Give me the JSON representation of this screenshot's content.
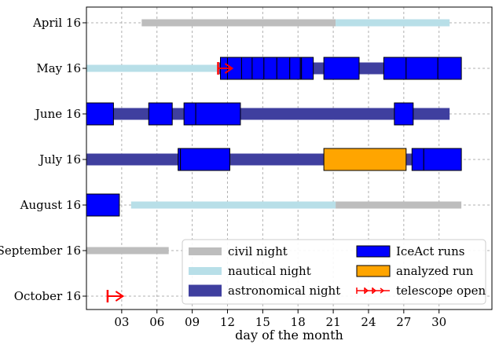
{
  "chart_data": {
    "type": "timeline",
    "xlabel": "day of the month",
    "xlim": [
      0,
      34.5
    ],
    "x_ticks": [
      3,
      6,
      9,
      12,
      15,
      18,
      21,
      24,
      27,
      30
    ],
    "x_tick_labels": [
      "03",
      "06",
      "09",
      "12",
      "15",
      "18",
      "21",
      "24",
      "27",
      "30"
    ],
    "rows": [
      "April 16",
      "May 16",
      "June 16",
      "July 16",
      "August 16",
      "September 16",
      "October 16"
    ],
    "grid": true,
    "colors": {
      "civil night": "#bdbdbd",
      "nautical night": "#b8dfe8",
      "astronomical night": "#3f3f9f",
      "IceAct runs": "#0000ff",
      "analyzed run": "#ffa500",
      "telescope open": "#ff0000"
    },
    "series": [
      {
        "name": "civil night",
        "segments": [
          {
            "row": "April 16",
            "start": 4.7,
            "end": 21.2
          },
          {
            "row": "August 16",
            "start": 21.2,
            "end": 31.9
          },
          {
            "row": "September 16",
            "start": 0,
            "end": 7.0
          }
        ]
      },
      {
        "name": "nautical night",
        "segments": [
          {
            "row": "April 16",
            "start": 21.2,
            "end": 30.9
          },
          {
            "row": "May 16",
            "start": 0,
            "end": 11.3
          },
          {
            "row": "August 16",
            "start": 3.8,
            "end": 21.2
          }
        ]
      },
      {
        "name": "astronomical night",
        "segments": [
          {
            "row": "May 16",
            "start": 11.3,
            "end": 31.9
          },
          {
            "row": "June 16",
            "start": 0,
            "end": 30.9
          },
          {
            "row": "July 16",
            "start": 0,
            "end": 31.9
          }
        ]
      },
      {
        "name": "IceAct runs",
        "segments": [
          {
            "row": "May 16",
            "start": 11.4,
            "end": 12.0
          },
          {
            "row": "May 16",
            "start": 12.0,
            "end": 13.2
          },
          {
            "row": "May 16",
            "start": 13.2,
            "end": 14.1
          },
          {
            "row": "May 16",
            "start": 14.1,
            "end": 15.1
          },
          {
            "row": "May 16",
            "start": 15.1,
            "end": 16.2
          },
          {
            "row": "May 16",
            "start": 16.2,
            "end": 17.3
          },
          {
            "row": "May 16",
            "start": 17.3,
            "end": 18.2
          },
          {
            "row": "May 16",
            "start": 18.2,
            "end": 18.3
          },
          {
            "row": "May 16",
            "start": 18.3,
            "end": 19.3
          },
          {
            "row": "May 16",
            "start": 20.2,
            "end": 23.2
          },
          {
            "row": "May 16",
            "start": 25.3,
            "end": 27.2
          },
          {
            "row": "May 16",
            "start": 27.2,
            "end": 29.9
          },
          {
            "row": "May 16",
            "start": 29.9,
            "end": 31.9
          },
          {
            "row": "June 16",
            "start": 0,
            "end": 2.3
          },
          {
            "row": "June 16",
            "start": 5.3,
            "end": 7.3
          },
          {
            "row": "June 16",
            "start": 8.3,
            "end": 9.3
          },
          {
            "row": "June 16",
            "start": 9.3,
            "end": 13.1
          },
          {
            "row": "June 16",
            "start": 26.2,
            "end": 27.8
          },
          {
            "row": "July 16",
            "start": 7.8,
            "end": 8.0
          },
          {
            "row": "July 16",
            "start": 8.0,
            "end": 12.2
          },
          {
            "row": "July 16",
            "start": 27.7,
            "end": 28.7
          },
          {
            "row": "July 16",
            "start": 28.7,
            "end": 31.9
          },
          {
            "row": "August 16",
            "start": 0,
            "end": 2.8
          }
        ]
      },
      {
        "name": "analyzed run",
        "segments": [
          {
            "row": "July 16",
            "start": 20.2,
            "end": 27.2
          }
        ]
      },
      {
        "name": "telescope open",
        "markers": [
          {
            "row": "May 16",
            "start": 11.2,
            "end": 12.4
          },
          {
            "row": "October 16",
            "start": 1.8,
            "end": 3.1
          }
        ]
      }
    ],
    "legend": {
      "position": "bottom-right",
      "columns": 2,
      "entries": [
        "civil night",
        "nautical night",
        "astronomical night",
        "IceAct runs",
        "analyzed run",
        "telescope open"
      ]
    }
  }
}
